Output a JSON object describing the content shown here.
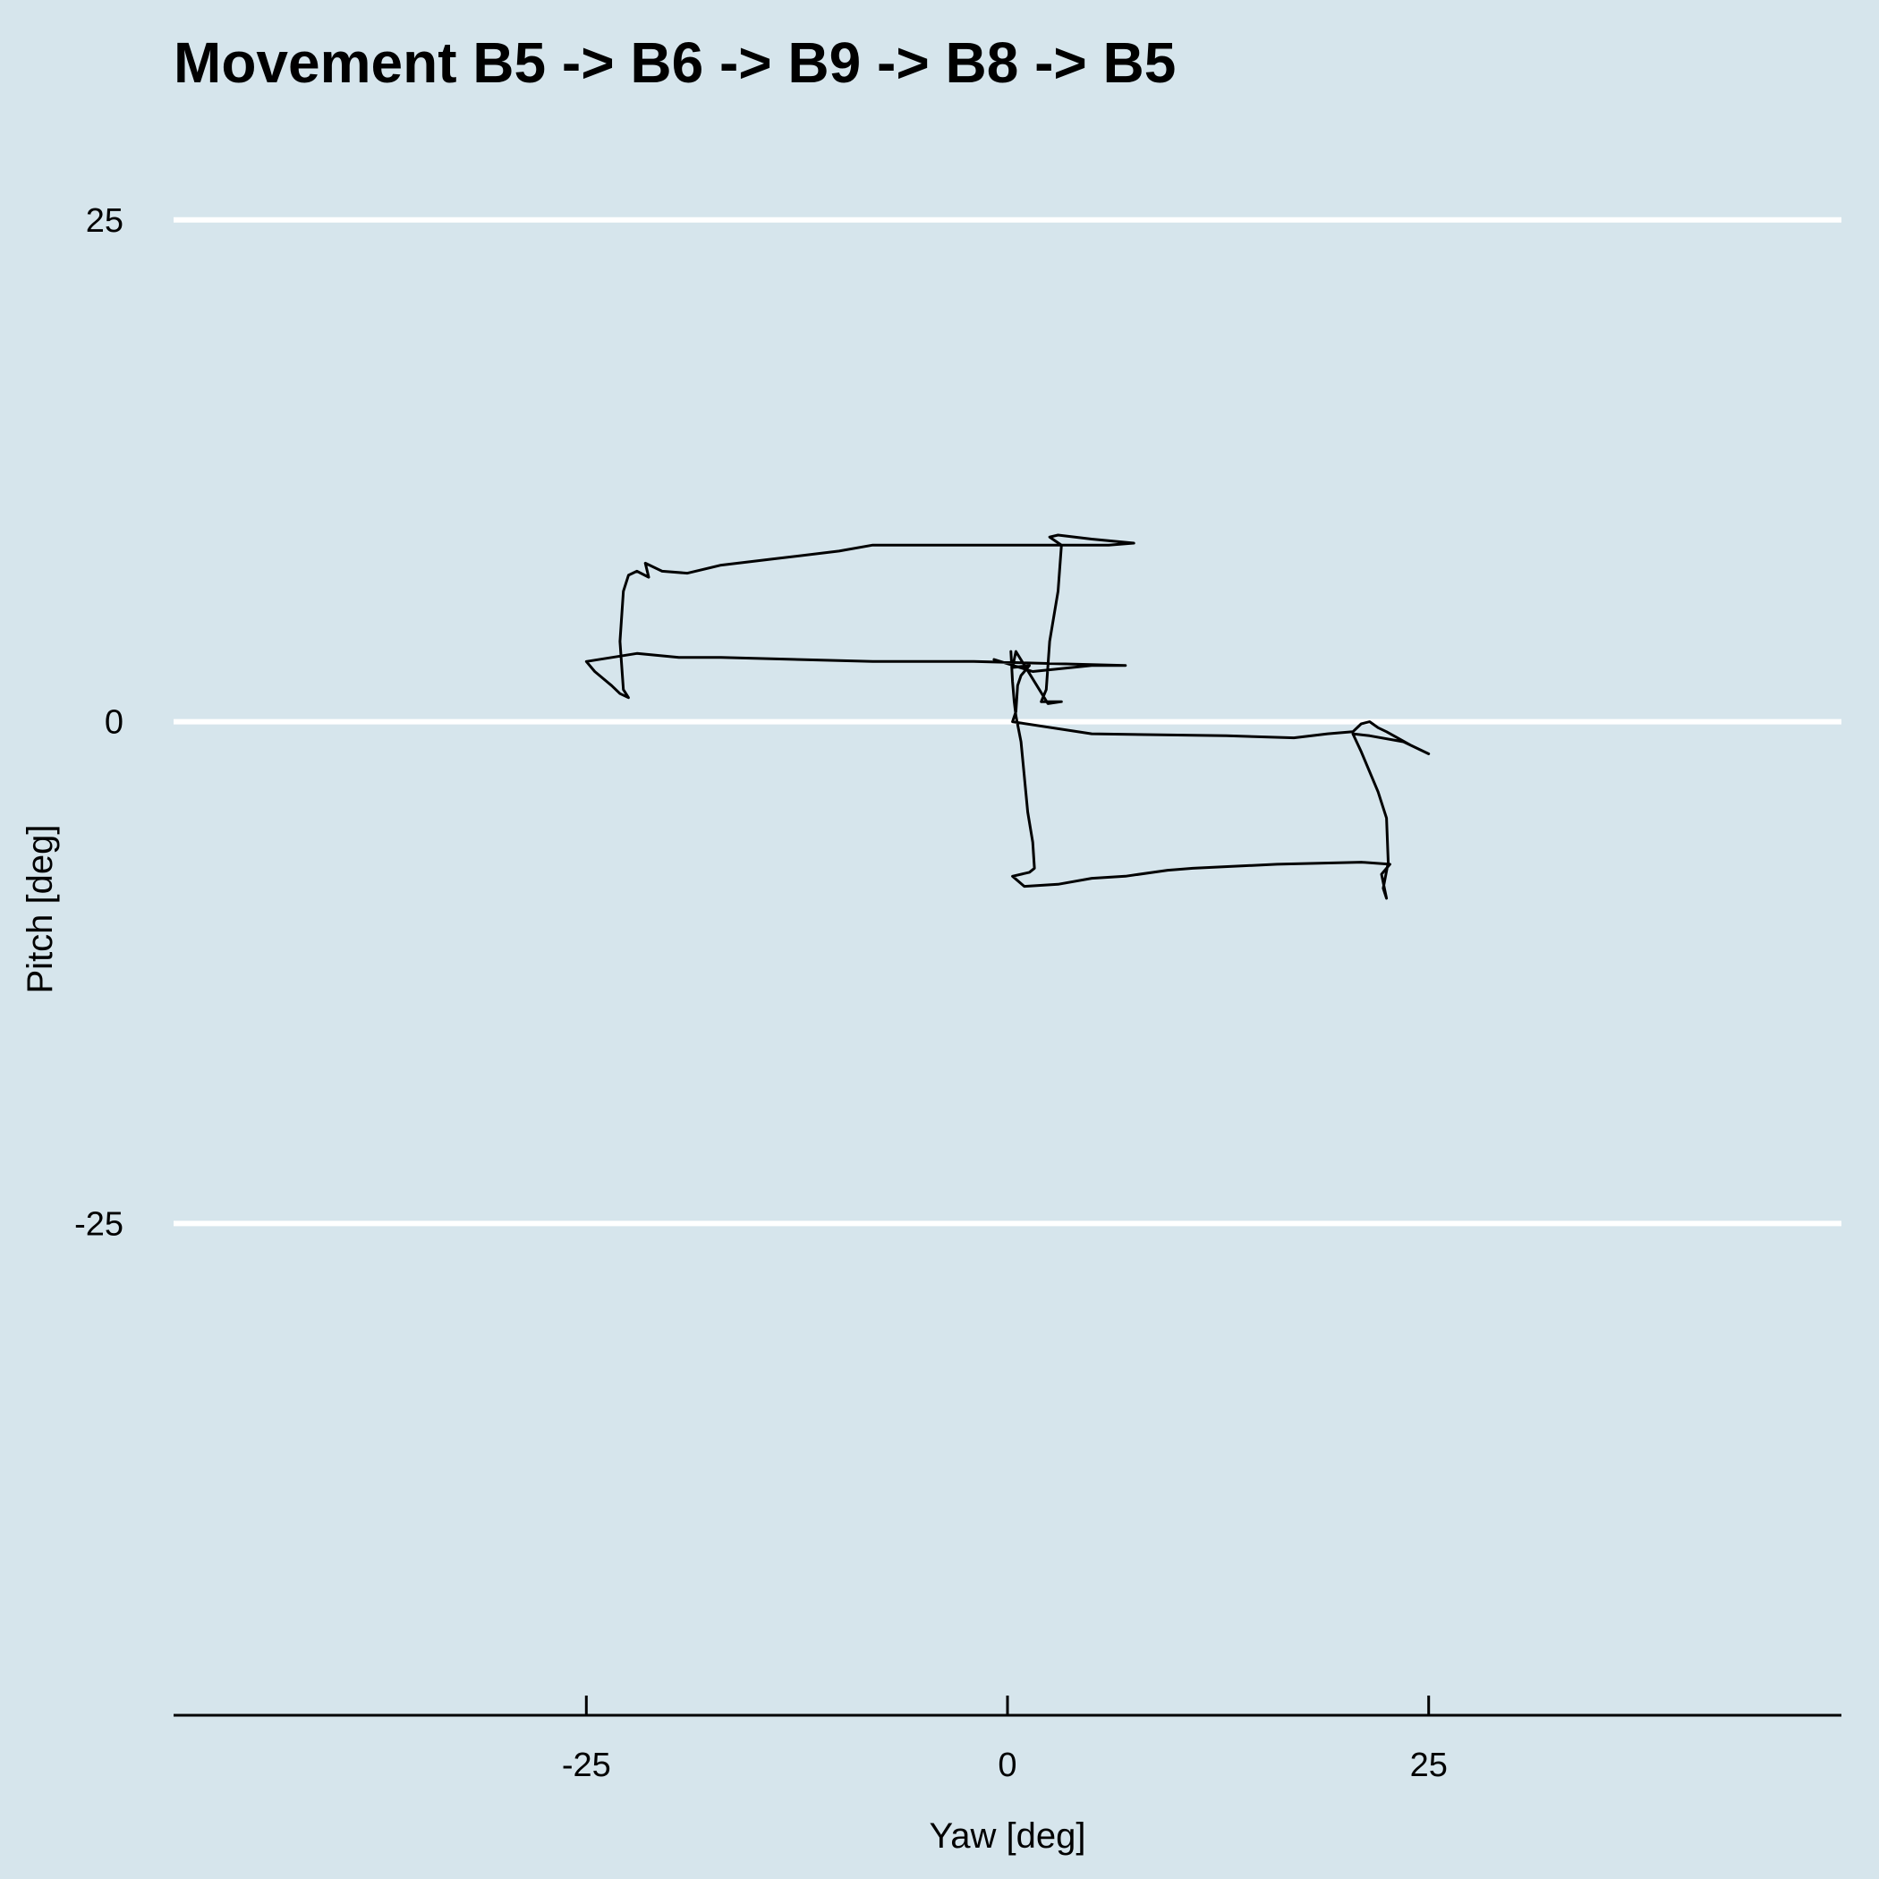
{
  "chart_data": {
    "type": "line",
    "title": "Movement B5 -> B6 -> B9 -> B8 -> B5",
    "xlabel": "Yaw [deg]",
    "ylabel": "Pitch [deg]",
    "xlim": [
      -49.5,
      49.5
    ],
    "ylim": [
      -49.5,
      31.5
    ],
    "x_ticks": [
      -25,
      0,
      25
    ],
    "x_tick_labels": [
      "-25",
      "0",
      "25"
    ],
    "y_ticks": [
      25,
      0,
      -25
    ],
    "y_tick_labels": [
      "25",
      "0",
      "-25"
    ],
    "grid": "horizontal major",
    "series": [
      {
        "values": [
          [
            -0.8,
            3.1
          ],
          [
            1.5,
            2.5
          ],
          [
            5.0,
            2.8
          ],
          [
            7.0,
            2.8
          ],
          [
            -2.0,
            3.0
          ],
          [
            -8.0,
            3.0
          ],
          [
            -17.0,
            3.2
          ],
          [
            -19.5,
            3.2
          ],
          [
            -22.0,
            3.4
          ],
          [
            -25.0,
            3.0
          ],
          [
            -24.5,
            2.5
          ],
          [
            -23.5,
            1.8
          ],
          [
            -23.0,
            1.4
          ],
          [
            -22.5,
            1.2
          ],
          [
            -22.8,
            1.6
          ],
          [
            -23.0,
            4.0
          ],
          [
            -22.8,
            6.5
          ],
          [
            -22.5,
            7.3
          ],
          [
            -22.0,
            7.5
          ],
          [
            -21.3,
            7.2
          ],
          [
            -21.5,
            7.9
          ],
          [
            -20.5,
            7.5
          ],
          [
            -19.0,
            7.4
          ],
          [
            -17.0,
            7.8
          ],
          [
            -14.0,
            8.1
          ],
          [
            -10.0,
            8.5
          ],
          [
            -8.0,
            8.8
          ],
          [
            0.0,
            8.8
          ],
          [
            6.0,
            8.8
          ],
          [
            7.5,
            8.9
          ],
          [
            5.0,
            9.1
          ],
          [
            3.0,
            9.3
          ],
          [
            2.5,
            9.2
          ],
          [
            3.2,
            8.8
          ],
          [
            3.0,
            6.5
          ],
          [
            2.5,
            4.0
          ],
          [
            2.3,
            1.6
          ],
          [
            2.0,
            1.0
          ],
          [
            3.2,
            1.0
          ],
          [
            2.4,
            0.9
          ],
          [
            0.5,
            3.5
          ],
          [
            0.3,
            2.7
          ],
          [
            1.3,
            2.8
          ],
          [
            0.8,
            2.3
          ],
          [
            0.6,
            1.8
          ],
          [
            0.5,
            0.5
          ],
          [
            0.3,
            0.0
          ],
          [
            5.0,
            -0.6
          ],
          [
            13.0,
            -0.7
          ],
          [
            17.0,
            -0.8
          ],
          [
            19.0,
            -0.6
          ],
          [
            20.5,
            -0.5
          ],
          [
            21.0,
            -0.1
          ],
          [
            21.5,
            0.0
          ],
          [
            22.0,
            -0.3
          ],
          [
            22.5,
            -0.5
          ],
          [
            24.0,
            -1.2
          ],
          [
            25.0,
            -1.6
          ],
          [
            23.5,
            -1.0
          ],
          [
            21.5,
            -0.7
          ],
          [
            20.5,
            -0.6
          ],
          [
            21.0,
            -1.5
          ],
          [
            22.0,
            -3.5
          ],
          [
            22.5,
            -4.8
          ],
          [
            22.6,
            -7.0
          ],
          [
            22.3,
            -8.3
          ],
          [
            22.5,
            -8.8
          ],
          [
            22.2,
            -7.6
          ],
          [
            22.7,
            -7.1
          ],
          [
            21.0,
            -7.0
          ],
          [
            16.0,
            -7.1
          ],
          [
            11.0,
            -7.3
          ],
          [
            9.5,
            -7.4
          ],
          [
            7.0,
            -7.7
          ],
          [
            5.0,
            -7.8
          ],
          [
            3.0,
            -8.1
          ],
          [
            1.0,
            -8.2
          ],
          [
            0.3,
            -7.7
          ],
          [
            1.3,
            -7.5
          ],
          [
            1.6,
            -7.3
          ],
          [
            1.5,
            -6.0
          ],
          [
            1.2,
            -4.5
          ],
          [
            0.8,
            -1.0
          ],
          [
            0.5,
            0.3
          ],
          [
            0.4,
            1.0
          ],
          [
            0.3,
            2.0
          ],
          [
            0.2,
            3.5
          ]
        ]
      }
    ]
  }
}
